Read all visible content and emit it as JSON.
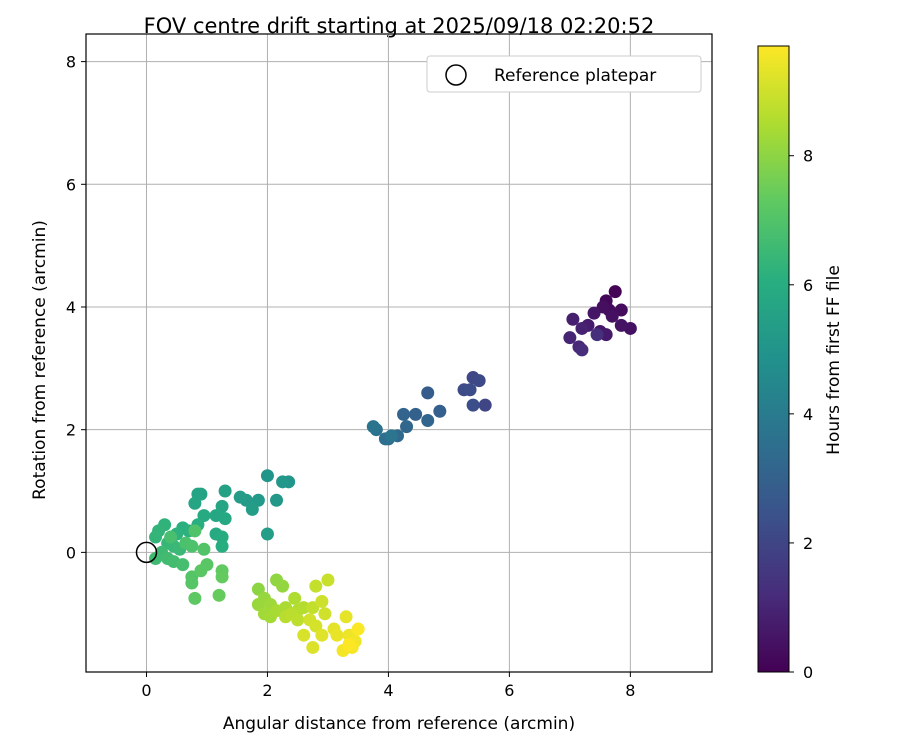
{
  "chart_data": {
    "type": "scatter",
    "title": "FOV centre drift starting at 2025/09/18 02:20:52",
    "xlabel": "Angular distance from reference (arcmin)",
    "ylabel": "Rotation from reference (arcmin)",
    "colorbar_label": "Hours from first FF file",
    "xlim": [
      -1.0,
      9.35
    ],
    "ylim": [
      -1.95,
      8.45
    ],
    "x_ticks": [
      0,
      2,
      4,
      6,
      8
    ],
    "y_ticks": [
      0,
      2,
      4,
      6,
      8
    ],
    "colorbar_ticks": [
      0,
      2,
      4,
      6,
      8
    ],
    "colorbar_range": [
      0,
      9.7
    ],
    "colormap": "viridis",
    "grid": true,
    "legend_position": "top-right",
    "reference": {
      "name": "Reference platepar",
      "x": 0,
      "y": 0
    },
    "points": [
      {
        "x": 7.75,
        "y": 4.25,
        "h": 0.1
      },
      {
        "x": 7.6,
        "y": 4.1,
        "h": 0.2
      },
      {
        "x": 7.65,
        "y": 3.95,
        "h": 0.25
      },
      {
        "x": 7.85,
        "y": 3.95,
        "h": 0.3
      },
      {
        "x": 7.55,
        "y": 4.0,
        "h": 0.35
      },
      {
        "x": 7.7,
        "y": 3.85,
        "h": 0.4
      },
      {
        "x": 8.0,
        "y": 3.65,
        "h": 0.45
      },
      {
        "x": 7.85,
        "y": 3.7,
        "h": 0.5
      },
      {
        "x": 7.4,
        "y": 3.9,
        "h": 0.55
      },
      {
        "x": 7.5,
        "y": 3.6,
        "h": 0.6
      },
      {
        "x": 7.6,
        "y": 3.55,
        "h": 0.7
      },
      {
        "x": 7.3,
        "y": 3.7,
        "h": 0.75
      },
      {
        "x": 7.05,
        "y": 3.8,
        "h": 0.85
      },
      {
        "x": 7.2,
        "y": 3.65,
        "h": 0.9
      },
      {
        "x": 7.0,
        "y": 3.5,
        "h": 1.0
      },
      {
        "x": 7.15,
        "y": 3.35,
        "h": 1.1
      },
      {
        "x": 7.2,
        "y": 3.3,
        "h": 1.2
      },
      {
        "x": 7.45,
        "y": 3.55,
        "h": 1.3
      },
      {
        "x": 5.6,
        "y": 2.4,
        "h": 2.0
      },
      {
        "x": 5.4,
        "y": 2.85,
        "h": 2.1
      },
      {
        "x": 5.5,
        "y": 2.8,
        "h": 2.15
      },
      {
        "x": 5.25,
        "y": 2.65,
        "h": 2.2
      },
      {
        "x": 5.35,
        "y": 2.65,
        "h": 2.25
      },
      {
        "x": 5.4,
        "y": 2.4,
        "h": 2.3
      },
      {
        "x": 4.65,
        "y": 2.6,
        "h": 2.8
      },
      {
        "x": 4.85,
        "y": 2.3,
        "h": 2.9
      },
      {
        "x": 4.45,
        "y": 2.25,
        "h": 3.0
      },
      {
        "x": 4.25,
        "y": 2.25,
        "h": 3.1
      },
      {
        "x": 4.65,
        "y": 2.15,
        "h": 3.15
      },
      {
        "x": 4.3,
        "y": 2.05,
        "h": 3.2
      },
      {
        "x": 4.15,
        "y": 1.9,
        "h": 3.3
      },
      {
        "x": 4.0,
        "y": 1.85,
        "h": 3.4
      },
      {
        "x": 3.95,
        "y": 1.85,
        "h": 3.5
      },
      {
        "x": 3.8,
        "y": 2.0,
        "h": 3.6
      },
      {
        "x": 3.75,
        "y": 2.05,
        "h": 3.7
      },
      {
        "x": 4.05,
        "y": 1.9,
        "h": 3.8
      },
      {
        "x": 2.0,
        "y": 1.25,
        "h": 5.0
      },
      {
        "x": 2.35,
        "y": 1.15,
        "h": 5.05
      },
      {
        "x": 2.25,
        "y": 1.15,
        "h": 5.1
      },
      {
        "x": 2.15,
        "y": 0.85,
        "h": 5.15
      },
      {
        "x": 1.85,
        "y": 0.85,
        "h": 5.2
      },
      {
        "x": 1.65,
        "y": 0.85,
        "h": 5.25
      },
      {
        "x": 1.55,
        "y": 0.9,
        "h": 5.3
      },
      {
        "x": 1.75,
        "y": 0.7,
        "h": 5.35
      },
      {
        "x": 2.0,
        "y": 0.3,
        "h": 5.4
      },
      {
        "x": 1.3,
        "y": 1.0,
        "h": 5.5
      },
      {
        "x": 0.9,
        "y": 0.95,
        "h": 5.55
      },
      {
        "x": 0.85,
        "y": 0.95,
        "h": 5.6
      },
      {
        "x": 1.25,
        "y": 0.75,
        "h": 5.65
      },
      {
        "x": 0.8,
        "y": 0.8,
        "h": 5.7
      },
      {
        "x": 1.15,
        "y": 0.6,
        "h": 5.75
      },
      {
        "x": 1.3,
        "y": 0.55,
        "h": 5.8
      },
      {
        "x": 0.95,
        "y": 0.6,
        "h": 5.85
      },
      {
        "x": 1.15,
        "y": 0.3,
        "h": 5.9
      },
      {
        "x": 1.25,
        "y": 0.25,
        "h": 5.95
      },
      {
        "x": 1.25,
        "y": 0.1,
        "h": 6.0
      },
      {
        "x": 0.85,
        "y": 0.45,
        "h": 6.05
      },
      {
        "x": 0.6,
        "y": 0.4,
        "h": 6.1
      },
      {
        "x": 0.7,
        "y": 0.35,
        "h": 6.15
      },
      {
        "x": 0.5,
        "y": 0.3,
        "h": 6.2
      },
      {
        "x": 0.3,
        "y": 0.45,
        "h": 6.25
      },
      {
        "x": 0.2,
        "y": 0.35,
        "h": 6.3
      },
      {
        "x": 0.15,
        "y": 0.25,
        "h": 6.35
      },
      {
        "x": 0.35,
        "y": 0.15,
        "h": 6.4
      },
      {
        "x": 0.45,
        "y": 0.1,
        "h": 6.45
      },
      {
        "x": 0.55,
        "y": 0.05,
        "h": 6.5
      },
      {
        "x": 0.25,
        "y": 0.0,
        "h": 6.55
      },
      {
        "x": 0.15,
        "y": -0.1,
        "h": 6.6
      },
      {
        "x": 0.35,
        "y": -0.1,
        "h": 6.65
      },
      {
        "x": 0.45,
        "y": -0.15,
        "h": 6.7
      },
      {
        "x": 0.6,
        "y": -0.2,
        "h": 6.75
      },
      {
        "x": 0.4,
        "y": 0.25,
        "h": 6.8
      },
      {
        "x": 0.65,
        "y": 0.15,
        "h": 6.85
      },
      {
        "x": 0.75,
        "y": 0.1,
        "h": 6.9
      },
      {
        "x": 0.8,
        "y": 0.35,
        "h": 6.95
      },
      {
        "x": 0.95,
        "y": 0.05,
        "h": 7.0
      },
      {
        "x": 0.75,
        "y": -0.4,
        "h": 7.05
      },
      {
        "x": 0.75,
        "y": -0.5,
        "h": 7.1
      },
      {
        "x": 1.0,
        "y": -0.2,
        "h": 7.15
      },
      {
        "x": 0.9,
        "y": -0.3,
        "h": 7.2
      },
      {
        "x": 0.8,
        "y": -0.75,
        "h": 7.25
      },
      {
        "x": 1.25,
        "y": -0.3,
        "h": 7.3
      },
      {
        "x": 1.25,
        "y": -0.4,
        "h": 7.35
      },
      {
        "x": 1.2,
        "y": -0.7,
        "h": 7.4
      },
      {
        "x": 1.85,
        "y": -0.6,
        "h": 8.0
      },
      {
        "x": 2.15,
        "y": -0.45,
        "h": 8.05
      },
      {
        "x": 2.25,
        "y": -0.55,
        "h": 8.1
      },
      {
        "x": 1.95,
        "y": -0.75,
        "h": 8.15
      },
      {
        "x": 1.85,
        "y": -0.85,
        "h": 8.2
      },
      {
        "x": 2.05,
        "y": -0.85,
        "h": 8.25
      },
      {
        "x": 1.95,
        "y": -1.0,
        "h": 8.3
      },
      {
        "x": 2.05,
        "y": -1.05,
        "h": 8.35
      },
      {
        "x": 2.15,
        "y": -0.95,
        "h": 8.4
      },
      {
        "x": 2.3,
        "y": -0.9,
        "h": 8.45
      },
      {
        "x": 2.45,
        "y": -0.75,
        "h": 8.5
      },
      {
        "x": 2.5,
        "y": -0.95,
        "h": 8.55
      },
      {
        "x": 2.6,
        "y": -0.9,
        "h": 8.6
      },
      {
        "x": 2.3,
        "y": -1.05,
        "h": 8.65
      },
      {
        "x": 2.4,
        "y": -1.0,
        "h": 8.7
      },
      {
        "x": 2.5,
        "y": -1.1,
        "h": 8.75
      },
      {
        "x": 2.75,
        "y": -0.9,
        "h": 8.8
      },
      {
        "x": 2.8,
        "y": -0.55,
        "h": 8.85
      },
      {
        "x": 3.0,
        "y": -0.45,
        "h": 8.9
      },
      {
        "x": 2.9,
        "y": -0.8,
        "h": 8.95
      },
      {
        "x": 2.95,
        "y": -1.0,
        "h": 9.0
      },
      {
        "x": 2.7,
        "y": -1.1,
        "h": 9.05
      },
      {
        "x": 2.8,
        "y": -1.2,
        "h": 9.1
      },
      {
        "x": 2.6,
        "y": -1.35,
        "h": 9.15
      },
      {
        "x": 2.75,
        "y": -1.55,
        "h": 9.2
      },
      {
        "x": 2.9,
        "y": -1.35,
        "h": 9.25
      },
      {
        "x": 3.1,
        "y": -1.25,
        "h": 9.3
      },
      {
        "x": 3.3,
        "y": -1.05,
        "h": 9.35
      },
      {
        "x": 3.15,
        "y": -1.35,
        "h": 9.4
      },
      {
        "x": 3.35,
        "y": -1.35,
        "h": 9.45
      },
      {
        "x": 3.45,
        "y": -1.45,
        "h": 9.5
      },
      {
        "x": 3.25,
        "y": -1.6,
        "h": 9.55
      },
      {
        "x": 3.4,
        "y": -1.55,
        "h": 9.6
      },
      {
        "x": 3.5,
        "y": -1.25,
        "h": 9.65
      },
      {
        "x": 3.35,
        "y": -1.5,
        "h": 9.7
      }
    ]
  }
}
